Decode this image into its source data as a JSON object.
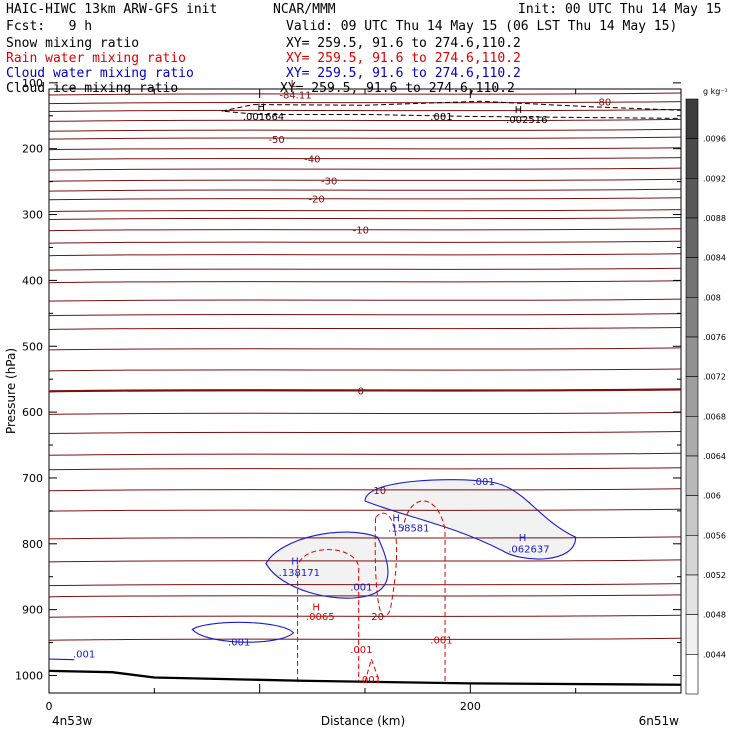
{
  "header": {
    "title_left": "HAIC-HIWC 13km ARW-GFS init",
    "center_title": "NCAR/MMM",
    "init": "Init: 00 UTC Thu 14 May 15",
    "fcst": "Fcst:   9 h",
    "valid": "Valid: 09 UTC Thu 14 May 15 (06 LST Thu 14 May 15)",
    "fields": [
      {
        "name": "Snow mixing ratio",
        "xy": "XY= 259.5, 91.6 to 274.6,110.2",
        "color": "#000000"
      },
      {
        "name": "Rain water mixing ratio",
        "xy": "XY= 259.5, 91.6 to 274.6,110.2",
        "color": "#e00000"
      },
      {
        "name": "Cloud water mixing ratio",
        "xy": "XY= 259.5, 91.6 to 274.6,110.2",
        "color": "#0000cc"
      },
      {
        "name": "Cloud ice mixing ratio",
        "xy": "XY= 259.5, 91.6 to 274.6,110.2",
        "color": "#000000"
      }
    ]
  },
  "chart_data": {
    "type": "contour",
    "xlabel": "Distance (km)",
    "ylabel": "Pressure (hPa)",
    "xlim": [
      0,
      300
    ],
    "ylim": [
      1050,
      50
    ],
    "x_ticks": [
      0,
      200
    ],
    "y_ticks": [
      100,
      200,
      300,
      400,
      500,
      600,
      700,
      800,
      900,
      1000
    ],
    "x_endpoint_labels": [
      "4n53w",
      "6n51w"
    ],
    "temperature_contour_labels": [
      {
        "text": "-84.11",
        "x": 117,
        "p": 118
      },
      {
        "text": "L",
        "x": 116,
        "p": 100
      },
      {
        "text": "-80",
        "x": 263,
        "p": 128
      },
      {
        "text": "-50",
        "x": 108,
        "p": 185
      },
      {
        "text": "-40",
        "x": 125,
        "p": 215
      },
      {
        "text": "-30",
        "x": 133,
        "p": 248
      },
      {
        "text": "-20",
        "x": 127,
        "p": 276
      },
      {
        "text": "-10",
        "x": 148,
        "p": 323
      },
      {
        "text": "0",
        "x": 148,
        "p": 567
      },
      {
        "text": "10",
        "x": 157,
        "p": 718
      },
      {
        "text": "20",
        "x": 156,
        "p": 910
      }
    ],
    "cloud_ice_labels": [
      {
        "text": "H",
        "x": 99,
        "p": 136
      },
      {
        "text": ".001664",
        "x": 92,
        "p": 150
      },
      {
        "text": ".001",
        "x": 181,
        "p": 150
      },
      {
        "text": "H",
        "x": 221,
        "p": 140
      },
      {
        "text": ".002516",
        "x": 217,
        "p": 155
      }
    ],
    "cloud_water_labels": [
      {
        "text": ".001",
        "x": 201,
        "p": 705
      },
      {
        "text": "H",
        "x": 163,
        "p": 760
      },
      {
        "text": ".158581",
        "x": 161,
        "p": 775
      },
      {
        "text": "H",
        "x": 223,
        "p": 790
      },
      {
        "text": ".062637",
        "x": 218,
        "p": 807
      },
      {
        "text": "H",
        "x": 115,
        "p": 825
      },
      {
        "text": ".138171",
        "x": 109,
        "p": 843
      },
      {
        "text": ".001",
        "x": 143,
        "p": 865
      },
      {
        "text": ".001",
        "x": 85,
        "p": 948
      }
    ],
    "cloud_water_left_label": ".001",
    "rain_labels": [
      {
        "text": "H",
        "x": 125,
        "p": 895
      },
      {
        "text": ".0065",
        "x": 122,
        "p": 910
      },
      {
        "text": ".001",
        "x": 143,
        "p": 960
      },
      {
        "text": ".001",
        "x": 181,
        "p": 945
      },
      {
        "text": ".001",
        "x": 147,
        "p": 1005
      }
    ],
    "colorbar": {
      "unit": "g kg⁻¹",
      "ticks": [
        ".0096",
        ".0092",
        ".0088",
        ".0084",
        ".008",
        ".0076",
        ".0072",
        ".0068",
        ".0064",
        ".006",
        ".0056",
        ".0052",
        ".0048",
        ".0044"
      ]
    }
  }
}
